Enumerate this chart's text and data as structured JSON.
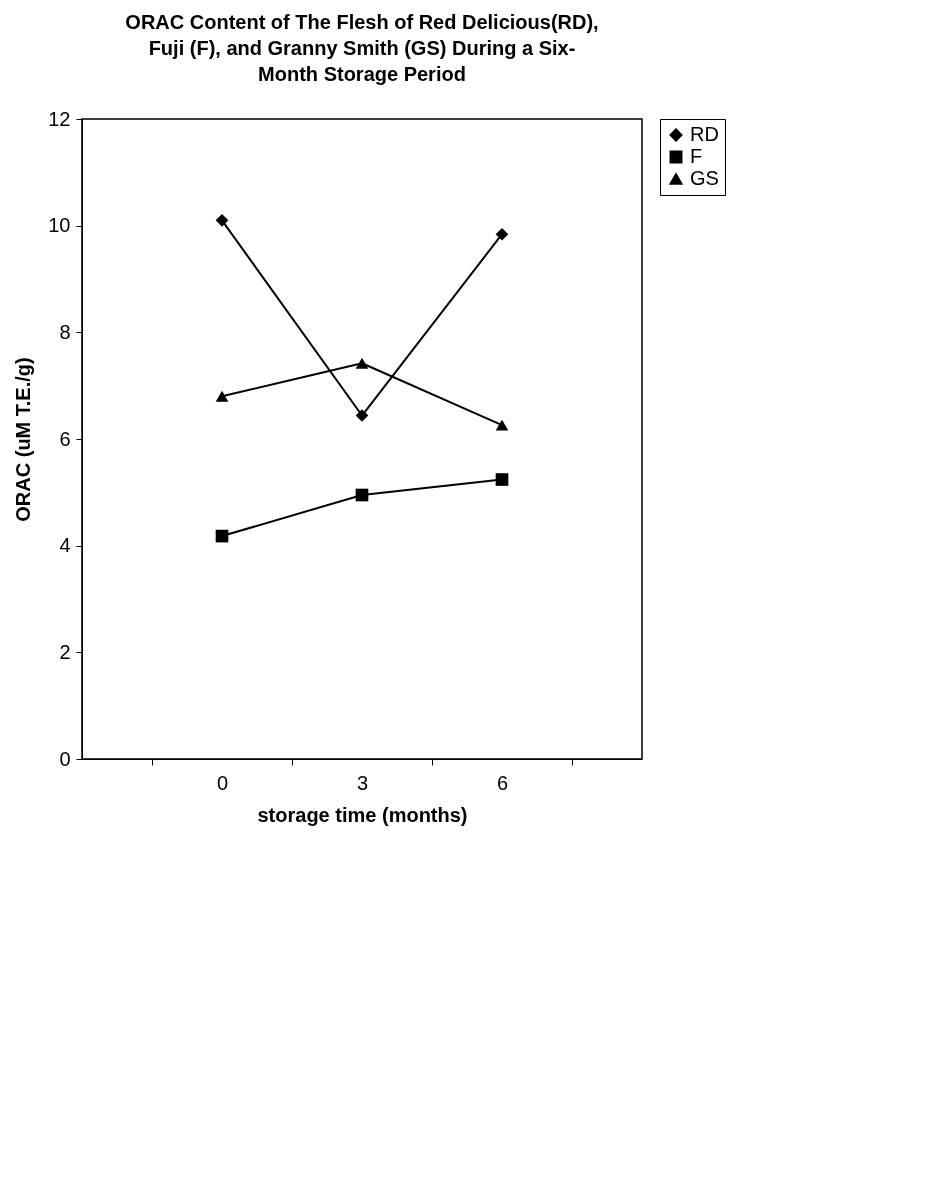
{
  "chart_data": {
    "type": "line",
    "title": "ORAC Content of The  Flesh of Red Delicious(RD), Fuji (F), and Granny Smith (GS) During a Six- Month Storage Period",
    "xlabel": "storage time (months)",
    "ylabel": "ORAC (uM T.E./g)",
    "categories": [
      "0",
      "3",
      "6"
    ],
    "ylim": [
      0,
      12
    ],
    "yticks": [
      0,
      2,
      4,
      6,
      8,
      10,
      12
    ],
    "grid": false,
    "legend": "right",
    "line_style": "solid",
    "series": [
      {
        "name": "RD",
        "color": "#000000",
        "marker": "diamond",
        "values": [
          10.1,
          6.44,
          9.84
        ]
      },
      {
        "name": "F",
        "color": "#000000",
        "marker": "square",
        "values": [
          4.18,
          4.95,
          5.24
        ]
      },
      {
        "name": "GS",
        "color": "#000000",
        "marker": "triangle",
        "values": [
          6.8,
          7.42,
          6.26
        ]
      }
    ]
  }
}
